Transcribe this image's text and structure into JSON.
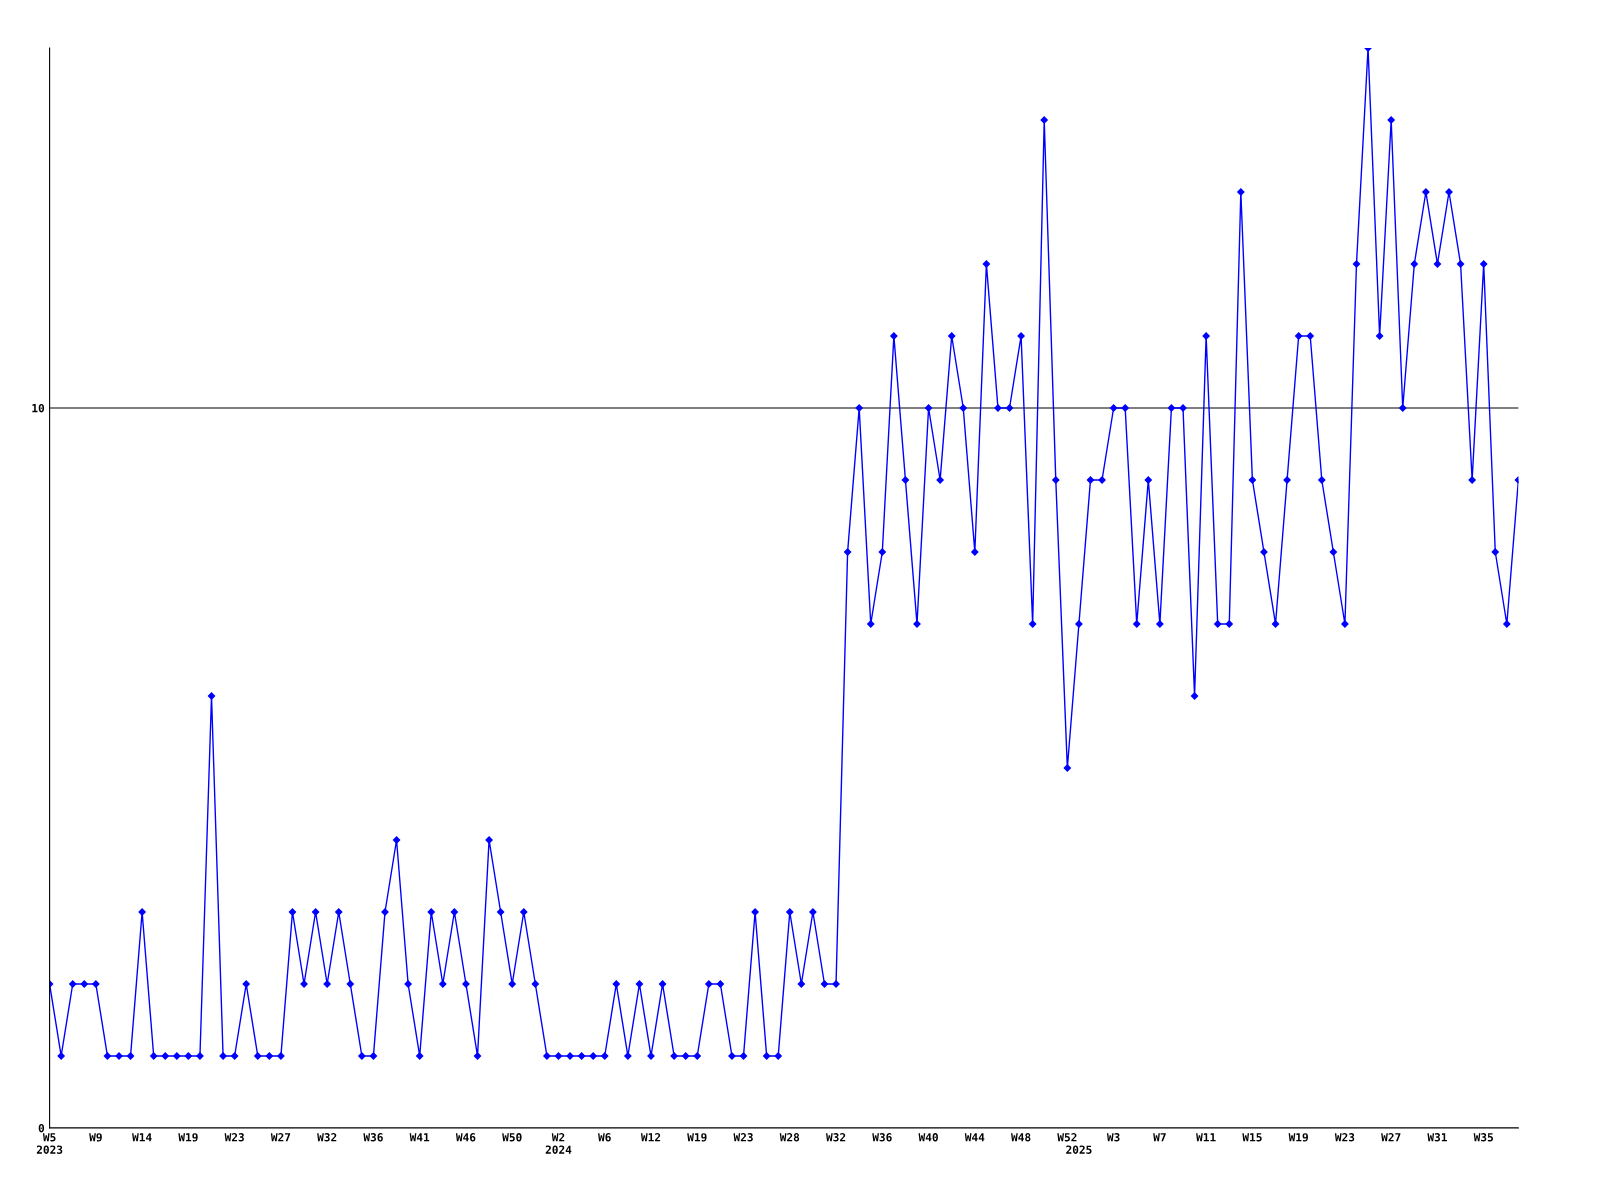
{
  "chart_data": {
    "type": "line",
    "categories": [
      "W5\n2023",
      null,
      null,
      null,
      "W9",
      null,
      null,
      null,
      "W14",
      null,
      null,
      null,
      "W19",
      null,
      null,
      null,
      "W23",
      null,
      null,
      null,
      "W27",
      null,
      null,
      null,
      "W32",
      null,
      null,
      null,
      "W36",
      null,
      null,
      null,
      "W41",
      null,
      null,
      null,
      "W46",
      null,
      null,
      null,
      "W50",
      null,
      null,
      null,
      "W2\n2024",
      null,
      null,
      null,
      "W6",
      null,
      null,
      null,
      "W12",
      null,
      null,
      null,
      "W19",
      null,
      null,
      null,
      "W23",
      null,
      null,
      null,
      "W28",
      null,
      null,
      null,
      "W32",
      null,
      null,
      null,
      "W36",
      null,
      null,
      null,
      "W40",
      null,
      null,
      null,
      "W44",
      null,
      null,
      null,
      "W48",
      null,
      null,
      null,
      "W52",
      "\n2025",
      null,
      null,
      "W3",
      null,
      null,
      null,
      "W7",
      null,
      null,
      null,
      "W11",
      null,
      null,
      null,
      "W15",
      null,
      null,
      null,
      "W19",
      null,
      null,
      null,
      "W23",
      null,
      null,
      null,
      "W27",
      null,
      null,
      null,
      "W31",
      null,
      null,
      null,
      "W35",
      null,
      null,
      null
    ],
    "series": [
      {
        "color": "#0000ff",
        "values": [
          2,
          1,
          2,
          2,
          2,
          1,
          1,
          1,
          3,
          1,
          1,
          1,
          1,
          1,
          6,
          1,
          1,
          2,
          1,
          1,
          1,
          3,
          2,
          3,
          2,
          3,
          2,
          1,
          1,
          3,
          4,
          2,
          1,
          3,
          2,
          3,
          2,
          1,
          4,
          3,
          2,
          3,
          2,
          1,
          1,
          1,
          1,
          1,
          1,
          2,
          1,
          2,
          1,
          2,
          1,
          1,
          1,
          2,
          2,
          1,
          1,
          3,
          1,
          1,
          3,
          2,
          3,
          2,
          2,
          8,
          10,
          7,
          8,
          11,
          9,
          7,
          10,
          9,
          11,
          10,
          8,
          12,
          10,
          10,
          11,
          7,
          14,
          9,
          5,
          7,
          9,
          9,
          10,
          10,
          7,
          9,
          7,
          10,
          10,
          6,
          11,
          7,
          7,
          13,
          9,
          8,
          7,
          9,
          11,
          11,
          9,
          8,
          7,
          12,
          15,
          11,
          14,
          10,
          12,
          13,
          12,
          13,
          12,
          9,
          12,
          8,
          7,
          9
        ]
      }
    ],
    "ylim": [
      0,
      15
    ],
    "yticks": [
      0,
      10
    ],
    "grid": "y",
    "marker": "diamond",
    "line_style": "solid",
    "legend": false
  }
}
